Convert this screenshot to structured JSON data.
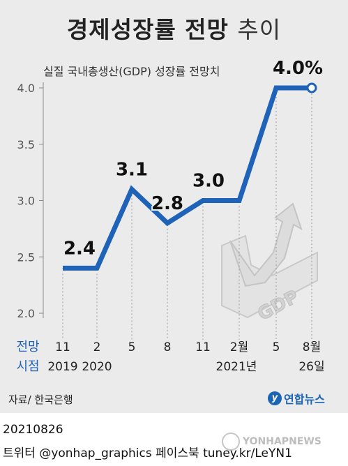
{
  "title": {
    "bold": "경제성장률 전망",
    "light": "추이"
  },
  "chart_data": {
    "type": "line",
    "subtitle": "실질 국내총생산(GDP) 성장률 전망치",
    "x_axis_name": [
      "전망",
      "시점"
    ],
    "categories": [
      {
        "top": "11",
        "bottom": "2019"
      },
      {
        "top": "2",
        "bottom": "2020"
      },
      {
        "top": "5",
        "bottom": ""
      },
      {
        "top": "8",
        "bottom": ""
      },
      {
        "top": "11",
        "bottom": ""
      },
      {
        "top": "2월",
        "bottom": "2021년"
      },
      {
        "top": "5",
        "bottom": ""
      },
      {
        "top": "8월",
        "bottom": "26일"
      }
    ],
    "values": [
      2.4,
      2.4,
      3.1,
      2.8,
      3.0,
      3.0,
      4.0,
      4.0
    ],
    "data_labels": [
      {
        "index": 1,
        "text": "2.4"
      },
      {
        "index": 2,
        "text": "3.1"
      },
      {
        "index": 3,
        "text": "2.8"
      },
      {
        "index": 4,
        "text": "3.0"
      },
      {
        "index": 7,
        "text": "4.0%"
      }
    ],
    "ylim": [
      2.0,
      4.0
    ],
    "yticks": [
      "2.0",
      "2.5",
      "3.0",
      "3.5",
      "4.0"
    ],
    "line_color": "#1f63b8",
    "grid": "vertical dotted lines",
    "illustration_label": "GDP"
  },
  "source": "자료/ 한국은행",
  "logo": {
    "mark": "y",
    "text": "연합뉴스"
  },
  "footer": {
    "date": "20210826",
    "social": "트위터 @yonhap_graphics 페이스북 tuney.kr/LeYN1"
  },
  "watermark": "YONHAPNEWS"
}
